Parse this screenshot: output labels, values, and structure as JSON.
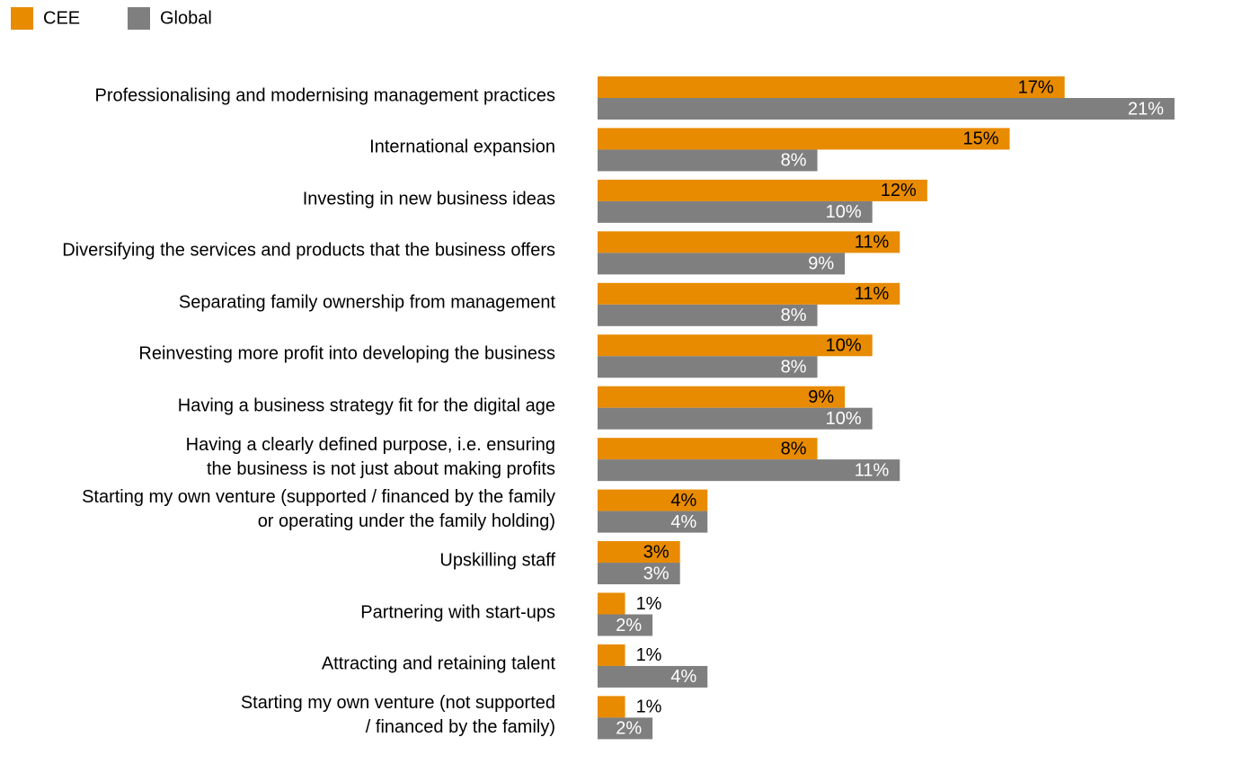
{
  "chart_data": {
    "type": "bar",
    "orientation": "horizontal",
    "categories": [
      "Professionalising and modernising management practices",
      "International expansion",
      "Investing in new business ideas",
      "Diversifying the services and products that the business offers",
      "Separating family ownership from management",
      "Reinvesting more profit into developing the business",
      "Having a business strategy fit for the digital age",
      "Having a clearly defined purpose, i.e. ensuring\nthe business is not just about making profits",
      "Starting my own venture (supported / financed by the family\nor operating under the family holding)",
      "Upskilling staff",
      "Partnering with start-ups",
      "Attracting and retaining talent",
      "Starting my own venture (not supported\n/ financed by the family)"
    ],
    "series": [
      {
        "name": "CEE",
        "color": "#E88B00",
        "values": [
          17,
          15,
          12,
          11,
          11,
          10,
          9,
          8,
          4,
          3,
          1,
          1,
          1
        ],
        "value_labels": [
          "17%",
          "15%",
          "12%",
          "11%",
          "11%",
          "10%",
          "9%",
          "8%",
          "4%",
          "3%",
          "1%",
          "1%",
          "1%"
        ]
      },
      {
        "name": "Global",
        "color": "#7F7F7F",
        "values": [
          21,
          8,
          10,
          9,
          8,
          8,
          10,
          11,
          4,
          3,
          2,
          4,
          2
        ],
        "value_labels": [
          "21%",
          "8%",
          "10%",
          "9%",
          "8%",
          "8%",
          "10%",
          "11%",
          "4%",
          "3%",
          "2%",
          "4%",
          "2%"
        ]
      }
    ],
    "legend": "top-left"
  }
}
